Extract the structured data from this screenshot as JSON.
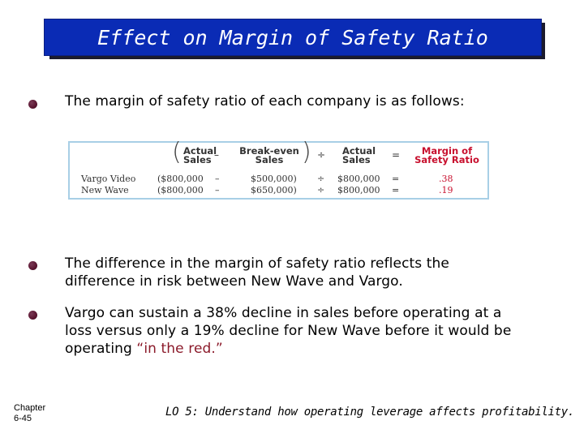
{
  "title": "Effect on Margin of Safety Ratio",
  "bullets": [
    "The margin of safety ratio of each company is as follows:",
    "The difference in the margin of safety ratio reflects the",
    "difference in risk between New Wave and Vargo.",
    "Vargo can sustain a 38% decline in sales before operating at a",
    "loss versus only a 19% decline for New Wave before it would be",
    "operating ",
    "“in the red.”"
  ],
  "table": {
    "headers": {
      "actual_sales_1": "Actual",
      "actual_sales_2": "Sales",
      "minus": "–",
      "breakeven_1": "Break-even",
      "breakeven_2": "Sales",
      "divide": "÷",
      "actual2_1": "Actual",
      "actual2_2": "Sales",
      "equals": "=",
      "mos_1": "Margin of",
      "mos_2": "Safety Ratio"
    },
    "rows": [
      {
        "company": "Vargo Video",
        "actual": "($800,000",
        "minus": "–",
        "breakeven": "$500,000)",
        "divide": "÷",
        "actual2": "$800,000",
        "equals": "=",
        "ratio": ".38"
      },
      {
        "company": "New Wave",
        "actual": "($800,000",
        "minus": "–",
        "breakeven": "$650,000)",
        "divide": "÷",
        "actual2": "$800,000",
        "equals": "=",
        "ratio": ".19"
      }
    ]
  },
  "footer": {
    "chapter_1": "Chapter",
    "chapter_2": "6-45",
    "lo": "LO 5: Understand how operating leverage affects profitability."
  },
  "colors": {
    "title_bg": "#0a2bb5",
    "bullet": "#5a1530",
    "highlight": "#8b1a2a",
    "table_border": "#a8cfe6",
    "ratio_red": "#c8102e"
  }
}
